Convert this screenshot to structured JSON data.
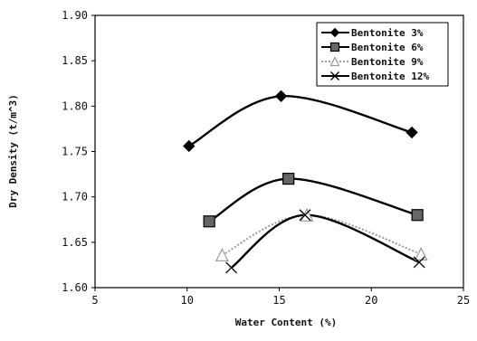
{
  "chart_data": {
    "type": "line",
    "title": "",
    "xlabel": "Water Content (%)",
    "ylabel": "Dry Density (t/m^3)",
    "xlim": [
      5,
      25
    ],
    "ylim": [
      1.6,
      1.9
    ],
    "x_ticks": [
      "5",
      "10",
      "15",
      "20",
      "25"
    ],
    "y_ticks": [
      "1.60",
      "1.65",
      "1.70",
      "1.75",
      "1.80",
      "1.85",
      "1.90"
    ],
    "x_tick_values": [
      5,
      10,
      15,
      20,
      25
    ],
    "y_tick_values": [
      1.6,
      1.65,
      1.7,
      1.75,
      1.8,
      1.85,
      1.9
    ],
    "grid": false,
    "legend_position": "top-right",
    "series": [
      {
        "name": "Bentonite 3%",
        "marker": "diamond",
        "dash": "solid",
        "color": "#000000",
        "points": [
          [
            10.1,
            1.756
          ],
          [
            15.1,
            1.811
          ],
          [
            22.2,
            1.771
          ]
        ]
      },
      {
        "name": "Bentonite 6%",
        "marker": "square",
        "dash": "solid",
        "color": "#000000",
        "points": [
          [
            11.2,
            1.673
          ],
          [
            15.5,
            1.72
          ],
          [
            22.5,
            1.68
          ]
        ]
      },
      {
        "name": "Bentonite 9%",
        "marker": "triangle",
        "dash": "dotted",
        "color": "#9a9a9a",
        "points": [
          [
            11.9,
            1.636
          ],
          [
            16.5,
            1.68
          ],
          [
            22.7,
            1.637
          ]
        ]
      },
      {
        "name": "Bentonite 12%",
        "marker": "x",
        "dash": "solid",
        "color": "#000000",
        "points": [
          [
            12.4,
            1.622
          ],
          [
            16.4,
            1.68
          ],
          [
            22.6,
            1.628
          ]
        ]
      }
    ]
  }
}
